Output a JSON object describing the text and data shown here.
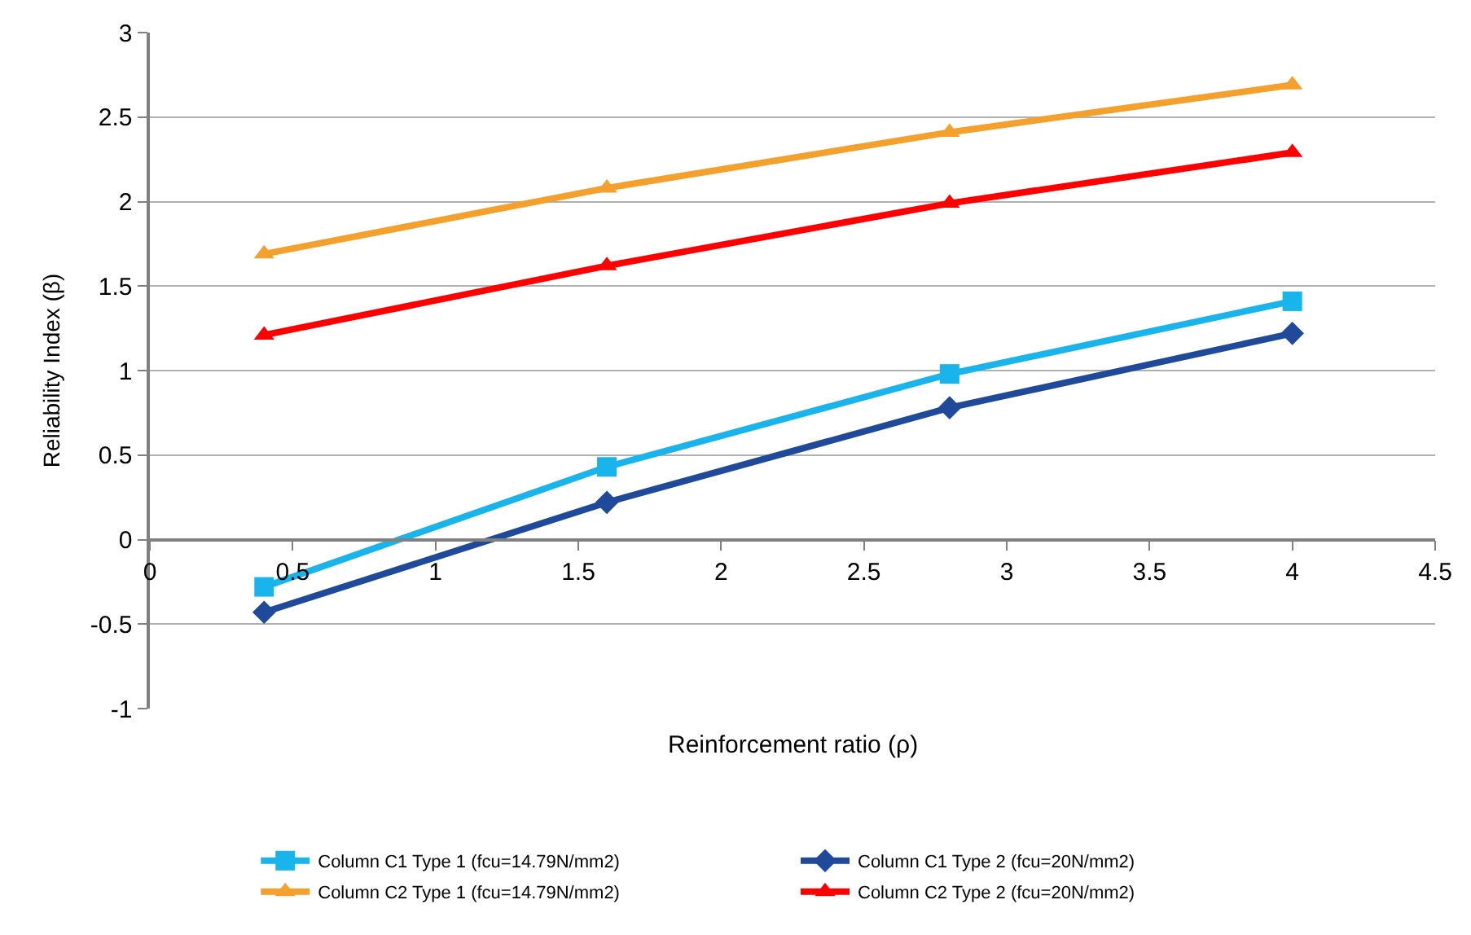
{
  "chart_data": {
    "type": "line",
    "xlabel": "Reinforcement ratio (ρ)",
    "ylabel": "Reliability Index (β)",
    "x": [
      0.4,
      1.6,
      2.8,
      4
    ],
    "series": [
      {
        "name": "Column C1 Type 1 (fcu=14.79N/mm2)",
        "color": "#1ab4ec",
        "marker": "square",
        "values": [
          -0.28,
          0.43,
          0.98,
          1.41
        ]
      },
      {
        "name": "Column C1 Type 2 (fcu=20N/mm2)",
        "color": "#1f4a9a",
        "marker": "diamond",
        "values": [
          -0.43,
          0.22,
          0.78,
          1.22
        ]
      },
      {
        "name": "Column C2 Type 1 (fcu=14.79N/mm2)",
        "color": "#f4a02c",
        "marker": "triangle",
        "values": [
          1.69,
          2.08,
          2.41,
          2.69
        ]
      },
      {
        "name": "Column C2 Type 2 (fcu=20N/mm2)",
        "color": "#ff0000",
        "marker": "triangle",
        "values": [
          1.21,
          1.62,
          1.99,
          2.29
        ]
      }
    ],
    "xlim": [
      0,
      4.5
    ],
    "xticks": [
      0,
      0.5,
      1,
      1.5,
      2,
      2.5,
      3,
      3.5,
      4,
      4.5
    ],
    "ylim": [
      -1,
      3
    ],
    "yticks": [
      -1,
      -0.5,
      0,
      0.5,
      1,
      1.5,
      2,
      2.5,
      3
    ],
    "grid": "y",
    "legend": "bottom",
    "line_style": "solid"
  }
}
